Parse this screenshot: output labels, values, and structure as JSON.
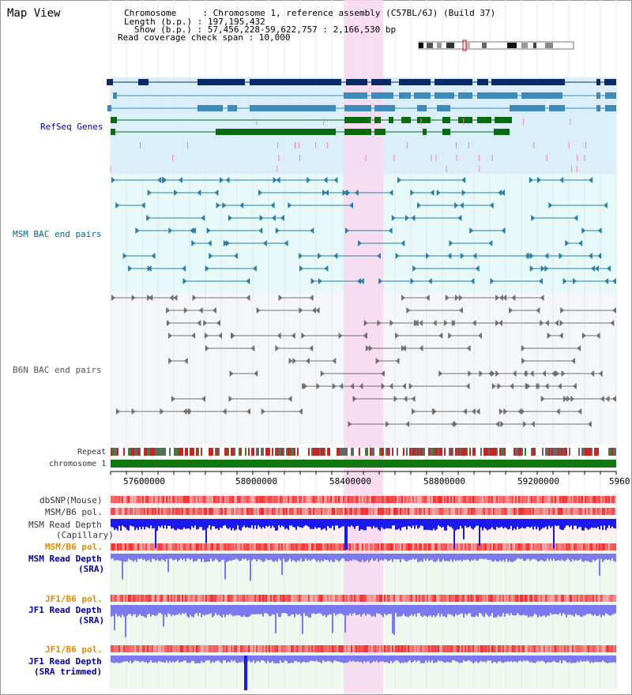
{
  "title": "Map View",
  "header": {
    "chromosome": "Chromosome     : Chromosome 1, reference assembly (C57BL/6J) (Build 37)",
    "length": "Length (b.p.) : 197,195,432",
    "show": "Show (b.p.) : 57,456,228-59,622,757 : 2,166,530 bp",
    "coverage": "Read coverage check span : 10,000"
  },
  "tracks": {
    "refseq": "RefSeq Genes",
    "msm_bac": "MSM BAC end pairs",
    "b6n_bac": "B6N BAC end pairs",
    "repeat": "Repeat",
    "chrom": "chromosome 1",
    "dbsnp": "dbSNP(Mouse)",
    "msm_b6_pol_1": "MSM/B6 pol.",
    "msm_read_cap_1": "MSM Read Depth",
    "msm_read_cap_2": "(Capillary)",
    "msm_b6_pol_2": "MSM/B6 pol.",
    "msm_read_sra_1": "MSM Read Depth",
    "msm_read_sra_2": "(SRA)",
    "jf1_b6_pol_1": "JF1/B6 pol.",
    "jf1_read_sra_1": "JF1 Read Depth",
    "jf1_read_sra_2": "(SRA)",
    "jf1_b6_pol_2": "JF1/B6 pol.",
    "jf1_read_trim_1": "JF1 Read Depth",
    "jf1_read_trim_2": "(SRA trimmed)"
  },
  "axis": {
    "ticks": [
      "57600000",
      "58000000",
      "58400000",
      "58800000",
      "59200000",
      "5960"
    ]
  },
  "colors": {
    "refseq_bg": "#dbeffa",
    "msm_bg": "#e6f8f8",
    "highlight": "#f8d8f0",
    "gene_dark": "#0a2a66",
    "gene_mid": "#3e8ab8",
    "gene_green": "#0a6a10",
    "chrom_bar": "#117711",
    "depth_blue": "#1a1aee",
    "depth_light": "#7a7aee"
  }
}
